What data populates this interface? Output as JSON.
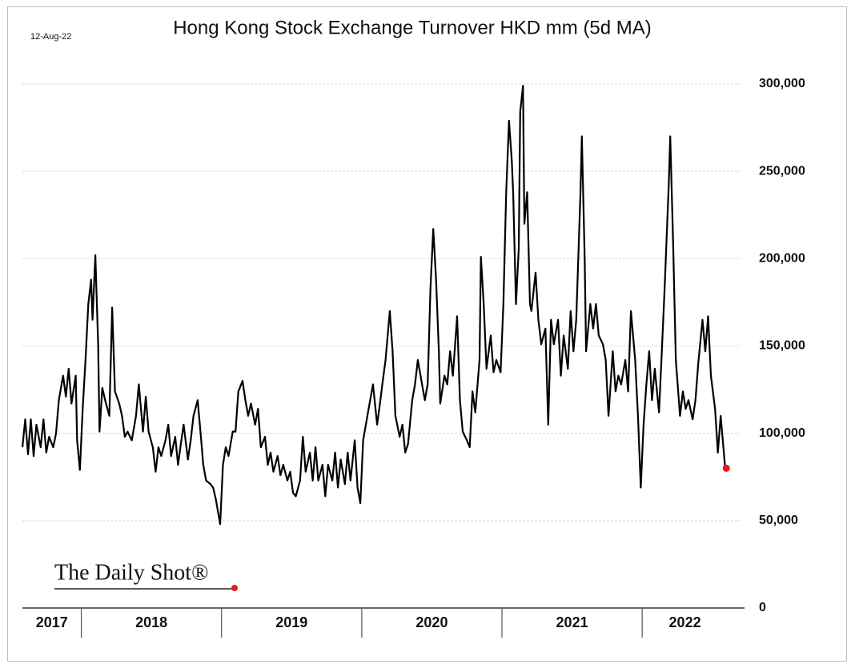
{
  "chart_data": {
    "type": "line",
    "title": "Hong Kong Stock Exchange Turnover HKD mm (5d MA)",
    "date_label": "12-Aug-22",
    "logo": "The Daily Shot®",
    "color": "#000000",
    "end_marker_color": "#e8191c",
    "grid": true,
    "ylim": [
      0,
      300000
    ],
    "yticks": [
      0,
      {
        "value": 50000,
        "label": "50,000"
      },
      {
        "value": 100000,
        "label": "100,000"
      },
      {
        "value": 150000,
        "label": "150,000"
      },
      {
        "value": 200000,
        "label": "200,000"
      },
      {
        "value": 250000,
        "label": "250,000"
      },
      {
        "value": 300000,
        "label": "300,000"
      }
    ],
    "xlim": [
      2017.58,
      2022.61
    ],
    "year_boundaries": [
      2018,
      2019,
      2020,
      2021,
      2022
    ],
    "year_labels": [
      "2017",
      "2018",
      "2019",
      "2020",
      "2021",
      "2022"
    ],
    "x": [
      2017.58,
      2017.6,
      2017.62,
      2017.64,
      2017.66,
      2017.68,
      2017.71,
      2017.73,
      2017.75,
      2017.77,
      2017.8,
      2017.82,
      2017.84,
      2017.87,
      2017.89,
      2017.91,
      2017.93,
      2017.96,
      2017.97,
      2017.99,
      2018.01,
      2018.03,
      2018.05,
      2018.07,
      2018.08,
      2018.1,
      2018.12,
      2018.13,
      2018.15,
      2018.17,
      2018.2,
      2018.22,
      2018.24,
      2018.27,
      2018.29,
      2018.31,
      2018.33,
      2018.36,
      2018.39,
      2018.41,
      2018.44,
      2018.46,
      2018.48,
      2018.51,
      2018.53,
      2018.55,
      2018.57,
      2018.6,
      2018.62,
      2018.64,
      2018.67,
      2018.69,
      2018.71,
      2018.73,
      2018.76,
      2018.78,
      2018.8,
      2018.83,
      2018.85,
      2018.87,
      2018.89,
      2018.92,
      2018.94,
      2018.96,
      2018.99,
      2019.01,
      2019.03,
      2019.05,
      2019.08,
      2019.1,
      2019.12,
      2019.15,
      2019.17,
      2019.19,
      2019.21,
      2019.24,
      2019.26,
      2019.28,
      2019.31,
      2019.33,
      2019.35,
      2019.37,
      2019.4,
      2019.42,
      2019.44,
      2019.47,
      2019.49,
      2019.51,
      2019.53,
      2019.56,
      2019.58,
      2019.6,
      2019.63,
      2019.65,
      2019.67,
      2019.69,
      2019.72,
      2019.74,
      2019.76,
      2019.79,
      2019.81,
      2019.83,
      2019.85,
      2019.88,
      2019.9,
      2019.92,
      2019.95,
      2019.97,
      2019.99,
      2020.01,
      2020.04,
      2020.06,
      2020.08,
      2020.11,
      2020.13,
      2020.15,
      2020.17,
      2020.2,
      2020.22,
      2020.24,
      2020.27,
      2020.29,
      2020.31,
      2020.33,
      2020.36,
      2020.38,
      2020.4,
      2020.43,
      2020.45,
      2020.47,
      2020.49,
      2020.51,
      2020.53,
      2020.55,
      2020.56,
      2020.59,
      2020.61,
      2020.63,
      2020.65,
      2020.68,
      2020.7,
      2020.72,
      2020.75,
      2020.77,
      2020.79,
      2020.81,
      2020.84,
      2020.85,
      2020.87,
      2020.89,
      2020.92,
      2020.94,
      2020.96,
      2020.99,
      2021.01,
      2021.03,
      2021.05,
      2021.07,
      2021.08,
      2021.1,
      2021.12,
      2021.13,
      2021.15,
      2021.16,
      2021.18,
      2021.2,
      2021.21,
      2021.24,
      2021.26,
      2021.28,
      2021.31,
      2021.33,
      2021.35,
      2021.37,
      2021.4,
      2021.42,
      2021.44,
      2021.47,
      2021.49,
      2021.51,
      2021.53,
      2021.56,
      2021.57,
      2021.59,
      2021.6,
      2021.63,
      2021.65,
      2021.67,
      2021.69,
      2021.72,
      2021.74,
      2021.76,
      2021.79,
      2021.81,
      2021.83,
      2021.85,
      2021.88,
      2021.9,
      2021.92,
      2021.95,
      2021.97,
      2021.99,
      2022.01,
      2022.03,
      2022.05,
      2022.07,
      2022.09,
      2022.12,
      2022.14,
      2022.16,
      2022.19,
      2022.2,
      2022.22,
      2022.24,
      2022.27,
      2022.29,
      2022.31,
      2022.33,
      2022.36,
      2022.38,
      2022.4,
      2022.43,
      2022.45,
      2022.47,
      2022.49,
      2022.52,
      2022.54,
      2022.56,
      2022.59,
      2022.6
    ],
    "values": [
      92000,
      108000,
      88000,
      108000,
      87000,
      105000,
      92000,
      108000,
      89000,
      98000,
      92000,
      100000,
      119000,
      133000,
      121000,
      137000,
      117000,
      133000,
      96000,
      79000,
      114000,
      142000,
      174000,
      188000,
      165000,
      202000,
      151000,
      101000,
      126000,
      119000,
      110000,
      172000,
      124000,
      117000,
      110000,
      98000,
      101000,
      96000,
      110000,
      128000,
      101000,
      121000,
      101000,
      92000,
      78000,
      92000,
      87000,
      96000,
      105000,
      87000,
      98000,
      82000,
      94000,
      105000,
      85000,
      96000,
      110000,
      119000,
      101000,
      82000,
      73000,
      71000,
      69000,
      62000,
      48000,
      82000,
      92000,
      87000,
      101000,
      101000,
      124000,
      130000,
      119000,
      110000,
      117000,
      105000,
      114000,
      92000,
      98000,
      82000,
      89000,
      78000,
      87000,
      76000,
      82000,
      73000,
      78000,
      66000,
      64000,
      73000,
      98000,
      78000,
      89000,
      73000,
      92000,
      73000,
      82000,
      64000,
      82000,
      73000,
      89000,
      69000,
      85000,
      71000,
      89000,
      73000,
      96000,
      69000,
      60000,
      96000,
      110000,
      119000,
      128000,
      105000,
      117000,
      130000,
      142000,
      170000,
      147000,
      110000,
      98000,
      105000,
      89000,
      94000,
      119000,
      128000,
      142000,
      128000,
      119000,
      128000,
      183000,
      217000,
      188000,
      147000,
      117000,
      133000,
      128000,
      147000,
      133000,
      167000,
      119000,
      101000,
      96000,
      92000,
      124000,
      112000,
      142000,
      201000,
      174000,
      137000,
      156000,
      135000,
      142000,
      135000,
      174000,
      238000,
      279000,
      256000,
      238000,
      174000,
      206000,
      284000,
      299000,
      220000,
      238000,
      174000,
      170000,
      192000,
      165000,
      151000,
      160000,
      105000,
      165000,
      151000,
      165000,
      133000,
      156000,
      137000,
      170000,
      147000,
      165000,
      238000,
      270000,
      201000,
      147000,
      174000,
      160000,
      174000,
      156000,
      151000,
      142000,
      110000,
      147000,
      124000,
      133000,
      128000,
      142000,
      124000,
      170000,
      142000,
      110000,
      69000,
      105000,
      128000,
      147000,
      119000,
      137000,
      112000,
      147000,
      183000,
      243000,
      270000,
      211000,
      142000,
      110000,
      124000,
      114000,
      119000,
      108000,
      119000,
      140000,
      165000,
      147000,
      167000,
      133000,
      114000,
      89000,
      110000,
      82000,
      80000
    ]
  }
}
